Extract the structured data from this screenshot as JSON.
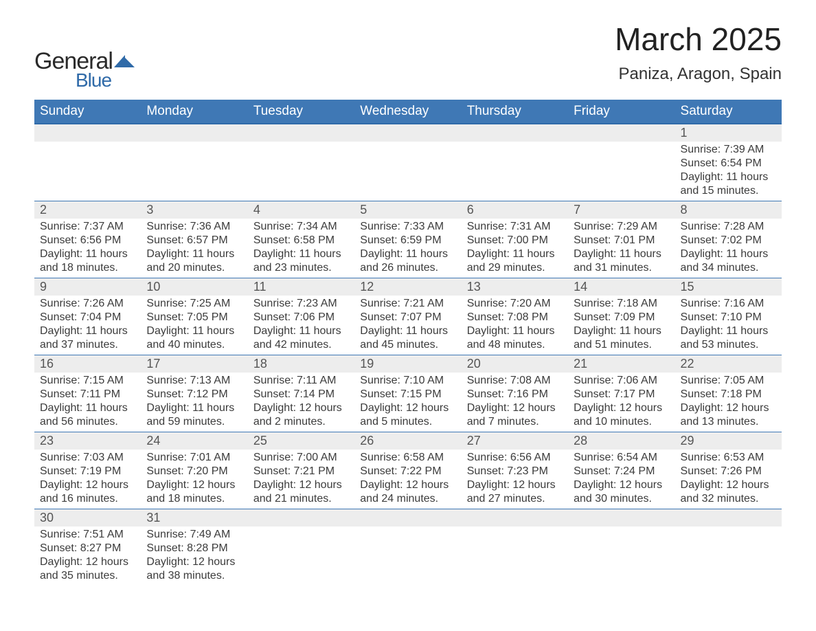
{
  "logo": {
    "word1": "General",
    "word2": "Blue",
    "word1_color": "#2a2a2a",
    "word2_color": "#2f6aa8",
    "icon_color": "#2f6aa8"
  },
  "title": "March 2025",
  "location": "Paniza, Aragon, Spain",
  "colors": {
    "header_bg": "#3f78b5",
    "header_border": "#2f6aa8",
    "daynum_bg": "#ededed",
    "text": "#393939",
    "week_divider": "#3f78b5"
  },
  "fonts": {
    "title_size": 46,
    "location_size": 24,
    "dow_size": 19,
    "daynum_size": 18,
    "body_size": 16
  },
  "days_of_week": [
    "Sunday",
    "Monday",
    "Tuesday",
    "Wednesday",
    "Thursday",
    "Friday",
    "Saturday"
  ],
  "weeks": [
    [
      {
        "day": ""
      },
      {
        "day": ""
      },
      {
        "day": ""
      },
      {
        "day": ""
      },
      {
        "day": ""
      },
      {
        "day": ""
      },
      {
        "day": "1",
        "sunrise": "Sunrise: 7:39 AM",
        "sunset": "Sunset: 6:54 PM",
        "daylight1": "Daylight: 11 hours",
        "daylight2": "and 15 minutes."
      }
    ],
    [
      {
        "day": "2",
        "sunrise": "Sunrise: 7:37 AM",
        "sunset": "Sunset: 6:56 PM",
        "daylight1": "Daylight: 11 hours",
        "daylight2": "and 18 minutes."
      },
      {
        "day": "3",
        "sunrise": "Sunrise: 7:36 AM",
        "sunset": "Sunset: 6:57 PM",
        "daylight1": "Daylight: 11 hours",
        "daylight2": "and 20 minutes."
      },
      {
        "day": "4",
        "sunrise": "Sunrise: 7:34 AM",
        "sunset": "Sunset: 6:58 PM",
        "daylight1": "Daylight: 11 hours",
        "daylight2": "and 23 minutes."
      },
      {
        "day": "5",
        "sunrise": "Sunrise: 7:33 AM",
        "sunset": "Sunset: 6:59 PM",
        "daylight1": "Daylight: 11 hours",
        "daylight2": "and 26 minutes."
      },
      {
        "day": "6",
        "sunrise": "Sunrise: 7:31 AM",
        "sunset": "Sunset: 7:00 PM",
        "daylight1": "Daylight: 11 hours",
        "daylight2": "and 29 minutes."
      },
      {
        "day": "7",
        "sunrise": "Sunrise: 7:29 AM",
        "sunset": "Sunset: 7:01 PM",
        "daylight1": "Daylight: 11 hours",
        "daylight2": "and 31 minutes."
      },
      {
        "day": "8",
        "sunrise": "Sunrise: 7:28 AM",
        "sunset": "Sunset: 7:02 PM",
        "daylight1": "Daylight: 11 hours",
        "daylight2": "and 34 minutes."
      }
    ],
    [
      {
        "day": "9",
        "sunrise": "Sunrise: 7:26 AM",
        "sunset": "Sunset: 7:04 PM",
        "daylight1": "Daylight: 11 hours",
        "daylight2": "and 37 minutes."
      },
      {
        "day": "10",
        "sunrise": "Sunrise: 7:25 AM",
        "sunset": "Sunset: 7:05 PM",
        "daylight1": "Daylight: 11 hours",
        "daylight2": "and 40 minutes."
      },
      {
        "day": "11",
        "sunrise": "Sunrise: 7:23 AM",
        "sunset": "Sunset: 7:06 PM",
        "daylight1": "Daylight: 11 hours",
        "daylight2": "and 42 minutes."
      },
      {
        "day": "12",
        "sunrise": "Sunrise: 7:21 AM",
        "sunset": "Sunset: 7:07 PM",
        "daylight1": "Daylight: 11 hours",
        "daylight2": "and 45 minutes."
      },
      {
        "day": "13",
        "sunrise": "Sunrise: 7:20 AM",
        "sunset": "Sunset: 7:08 PM",
        "daylight1": "Daylight: 11 hours",
        "daylight2": "and 48 minutes."
      },
      {
        "day": "14",
        "sunrise": "Sunrise: 7:18 AM",
        "sunset": "Sunset: 7:09 PM",
        "daylight1": "Daylight: 11 hours",
        "daylight2": "and 51 minutes."
      },
      {
        "day": "15",
        "sunrise": "Sunrise: 7:16 AM",
        "sunset": "Sunset: 7:10 PM",
        "daylight1": "Daylight: 11 hours",
        "daylight2": "and 53 minutes."
      }
    ],
    [
      {
        "day": "16",
        "sunrise": "Sunrise: 7:15 AM",
        "sunset": "Sunset: 7:11 PM",
        "daylight1": "Daylight: 11 hours",
        "daylight2": "and 56 minutes."
      },
      {
        "day": "17",
        "sunrise": "Sunrise: 7:13 AM",
        "sunset": "Sunset: 7:12 PM",
        "daylight1": "Daylight: 11 hours",
        "daylight2": "and 59 minutes."
      },
      {
        "day": "18",
        "sunrise": "Sunrise: 7:11 AM",
        "sunset": "Sunset: 7:14 PM",
        "daylight1": "Daylight: 12 hours",
        "daylight2": "and 2 minutes."
      },
      {
        "day": "19",
        "sunrise": "Sunrise: 7:10 AM",
        "sunset": "Sunset: 7:15 PM",
        "daylight1": "Daylight: 12 hours",
        "daylight2": "and 5 minutes."
      },
      {
        "day": "20",
        "sunrise": "Sunrise: 7:08 AM",
        "sunset": "Sunset: 7:16 PM",
        "daylight1": "Daylight: 12 hours",
        "daylight2": "and 7 minutes."
      },
      {
        "day": "21",
        "sunrise": "Sunrise: 7:06 AM",
        "sunset": "Sunset: 7:17 PM",
        "daylight1": "Daylight: 12 hours",
        "daylight2": "and 10 minutes."
      },
      {
        "day": "22",
        "sunrise": "Sunrise: 7:05 AM",
        "sunset": "Sunset: 7:18 PM",
        "daylight1": "Daylight: 12 hours",
        "daylight2": "and 13 minutes."
      }
    ],
    [
      {
        "day": "23",
        "sunrise": "Sunrise: 7:03 AM",
        "sunset": "Sunset: 7:19 PM",
        "daylight1": "Daylight: 12 hours",
        "daylight2": "and 16 minutes."
      },
      {
        "day": "24",
        "sunrise": "Sunrise: 7:01 AM",
        "sunset": "Sunset: 7:20 PM",
        "daylight1": "Daylight: 12 hours",
        "daylight2": "and 18 minutes."
      },
      {
        "day": "25",
        "sunrise": "Sunrise: 7:00 AM",
        "sunset": "Sunset: 7:21 PM",
        "daylight1": "Daylight: 12 hours",
        "daylight2": "and 21 minutes."
      },
      {
        "day": "26",
        "sunrise": "Sunrise: 6:58 AM",
        "sunset": "Sunset: 7:22 PM",
        "daylight1": "Daylight: 12 hours",
        "daylight2": "and 24 minutes."
      },
      {
        "day": "27",
        "sunrise": "Sunrise: 6:56 AM",
        "sunset": "Sunset: 7:23 PM",
        "daylight1": "Daylight: 12 hours",
        "daylight2": "and 27 minutes."
      },
      {
        "day": "28",
        "sunrise": "Sunrise: 6:54 AM",
        "sunset": "Sunset: 7:24 PM",
        "daylight1": "Daylight: 12 hours",
        "daylight2": "and 30 minutes."
      },
      {
        "day": "29",
        "sunrise": "Sunrise: 6:53 AM",
        "sunset": "Sunset: 7:26 PM",
        "daylight1": "Daylight: 12 hours",
        "daylight2": "and 32 minutes."
      }
    ],
    [
      {
        "day": "30",
        "sunrise": "Sunrise: 7:51 AM",
        "sunset": "Sunset: 8:27 PM",
        "daylight1": "Daylight: 12 hours",
        "daylight2": "and 35 minutes."
      },
      {
        "day": "31",
        "sunrise": "Sunrise: 7:49 AM",
        "sunset": "Sunset: 8:28 PM",
        "daylight1": "Daylight: 12 hours",
        "daylight2": "and 38 minutes."
      },
      {
        "day": ""
      },
      {
        "day": ""
      },
      {
        "day": ""
      },
      {
        "day": ""
      },
      {
        "day": ""
      }
    ]
  ]
}
